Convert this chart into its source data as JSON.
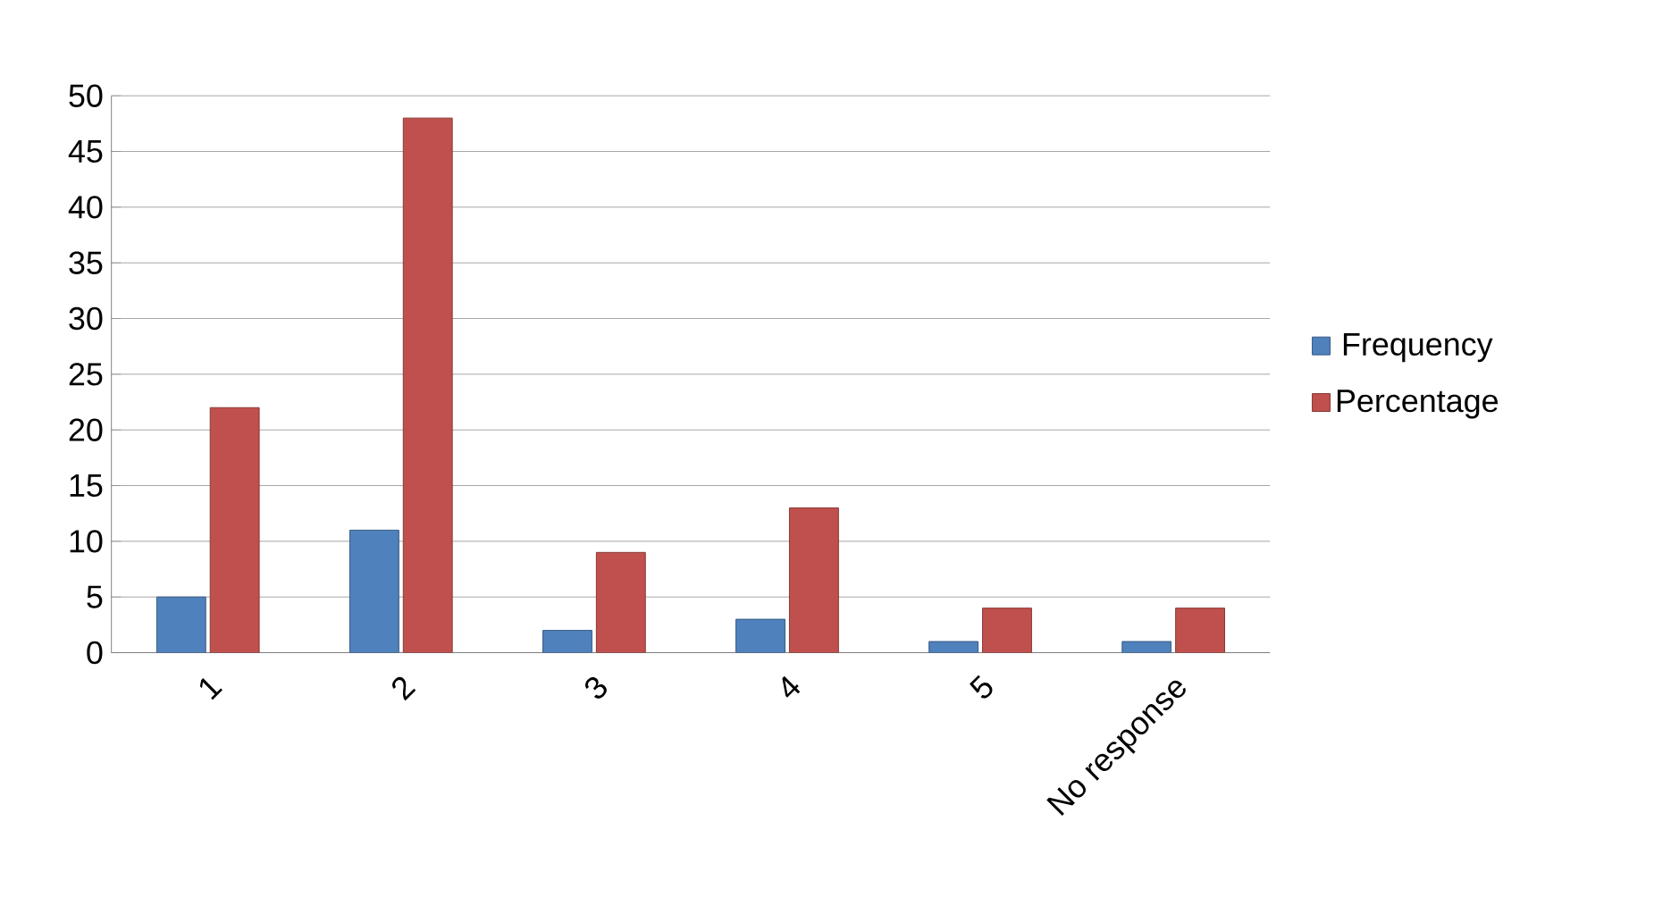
{
  "chart_data": {
    "type": "bar",
    "categories": [
      "1",
      "2",
      "3",
      "4",
      "5",
      "No response"
    ],
    "series": [
      {
        "name": "Frequency",
        "color": "#4f81bd",
        "values": [
          5,
          11,
          2,
          3,
          1,
          1
        ]
      },
      {
        "name": "Percentage",
        "color": "#c0504d",
        "values": [
          22,
          48,
          9,
          13,
          4,
          4
        ]
      }
    ],
    "ylim": [
      0,
      50
    ],
    "yticks": [
      0,
      5,
      10,
      15,
      20,
      25,
      30,
      35,
      40,
      45,
      50
    ],
    "grid": "y",
    "legend": "right"
  }
}
